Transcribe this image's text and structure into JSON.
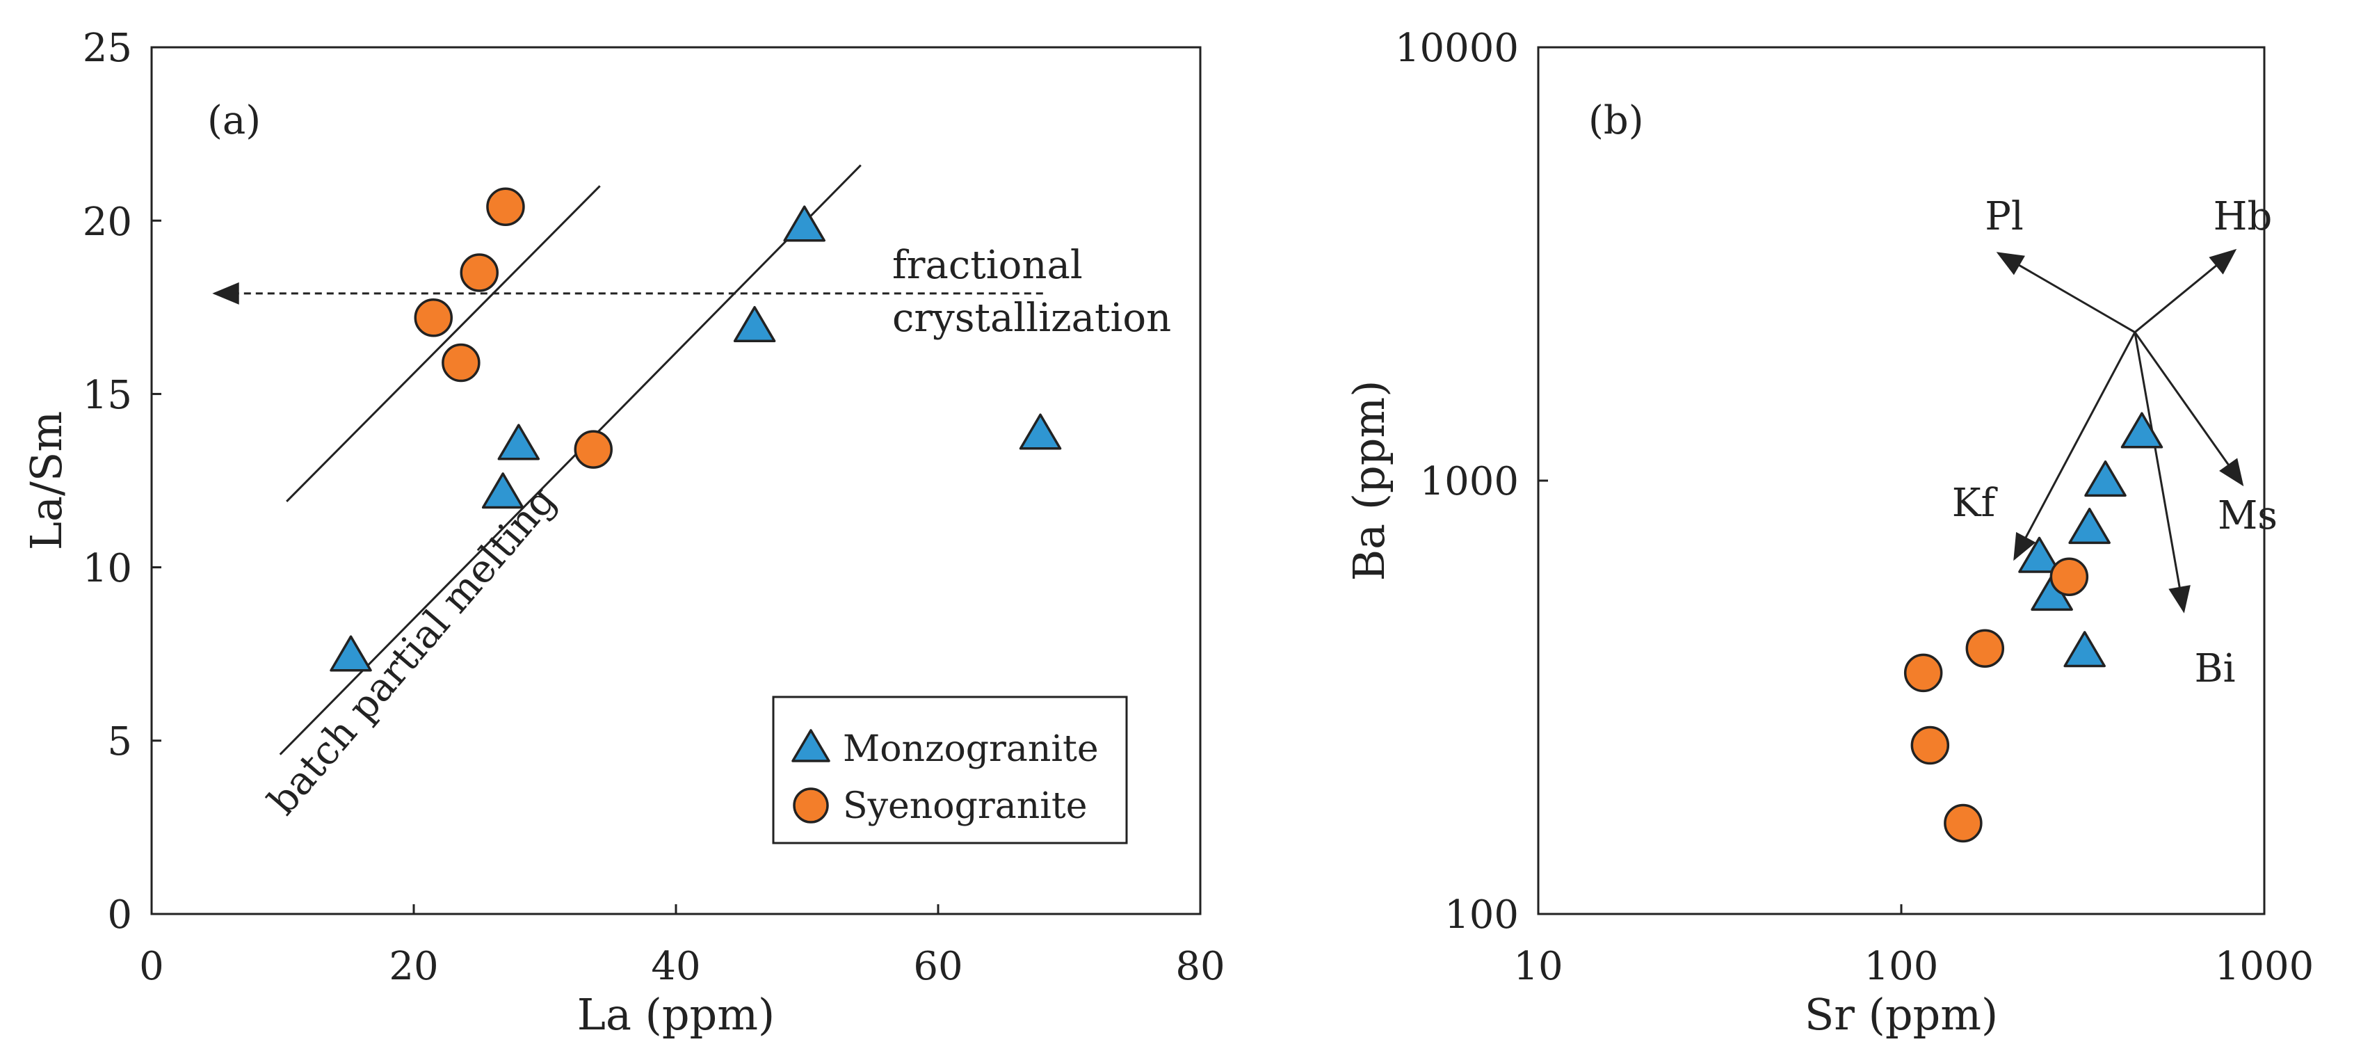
{
  "chart_data": [
    {
      "type": "scatter",
      "panel_label": "(a)",
      "xlabel": "La (ppm)",
      "ylabel": "La/Sm",
      "xlim": [
        0,
        80
      ],
      "ylim": [
        0,
        25
      ],
      "xticks": [
        "0",
        "20",
        "40",
        "60",
        "80"
      ],
      "yticks": [
        "0",
        "5",
        "10",
        "15",
        "20",
        "25"
      ],
      "series": [
        {
          "name": "Monzogranite",
          "marker": "triangle",
          "color": "#2f96d2",
          "points": [
            [
              15.2,
              7.4
            ],
            [
              26.8,
              12.1
            ],
            [
              28.0,
              13.5
            ],
            [
              46.0,
              16.9
            ],
            [
              49.8,
              19.8
            ],
            [
              67.8,
              13.8
            ]
          ]
        },
        {
          "name": "Syenogranite",
          "marker": "circle",
          "color": "#f37e2a",
          "points": [
            [
              21.5,
              17.2
            ],
            [
              23.6,
              15.9
            ],
            [
              25.0,
              18.5
            ],
            [
              27.0,
              20.4
            ],
            [
              33.7,
              13.4
            ]
          ]
        }
      ],
      "trend_lines": [
        {
          "from": [
            10.3,
            11.9
          ],
          "to": [
            34.2,
            21.0
          ]
        },
        {
          "from": [
            9.8,
            4.6
          ],
          "to": [
            54.1,
            21.6
          ]
        }
      ],
      "fractional_arrow": {
        "from": [
          68.0,
          17.9
        ],
        "to": [
          4.8,
          17.9
        ]
      },
      "annotations": {
        "fractional_1": "fractional",
        "fractional_2": "crystallization",
        "batch": "batch partial melting"
      },
      "legend": {
        "position": "bottom-right",
        "entries": [
          "Monzogranite",
          "Syenogranite"
        ]
      }
    },
    {
      "type": "scatter",
      "panel_label": "(b)",
      "xlabel": "Sr (ppm)",
      "ylabel": "Ba (ppm)",
      "xscale": "log",
      "yscale": "log",
      "xlim": [
        10,
        1000
      ],
      "ylim": [
        100,
        10000
      ],
      "xticks": [
        "10",
        "100",
        "1000"
      ],
      "yticks": [
        "100",
        "1000",
        "10000"
      ],
      "series": [
        {
          "name": "Monzogranite",
          "marker": "triangle",
          "color": "#2f96d2",
          "points": [
            [
              460,
              1280
            ],
            [
              365,
              990
            ],
            [
              330,
              770
            ],
            [
              240,
              660
            ],
            [
              260,
              540
            ],
            [
              320,
              400
            ]
          ]
        },
        {
          "name": "Syenogranite",
          "marker": "circle",
          "color": "#f37e2a",
          "points": [
            [
              290,
              600
            ],
            [
              170,
              410
            ],
            [
              115,
              360
            ],
            [
              120,
              245
            ],
            [
              148,
              162
            ]
          ]
        }
      ],
      "vector_origin": [
        440,
        2200
      ],
      "vectors": [
        {
          "label": "Pl",
          "to": [
            185,
            3350
          ]
        },
        {
          "label": "Hb",
          "to": [
            830,
            3400
          ]
        },
        {
          "label": "Kf",
          "to": [
            205,
            660
          ]
        },
        {
          "label": "Ms",
          "to": [
            870,
            980
          ]
        },
        {
          "label": "Bi",
          "to": [
            600,
            500
          ]
        }
      ]
    }
  ]
}
